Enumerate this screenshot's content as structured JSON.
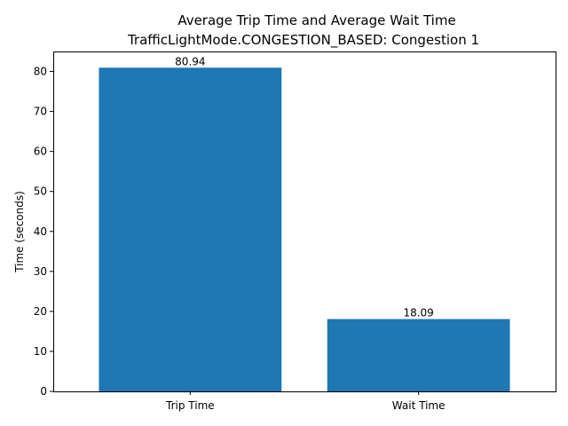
{
  "chart_data": {
    "type": "bar",
    "title": "Average Trip Time and Average Wait Time",
    "subtitle": "TrafficLightMode.CONGESTION_BASED: Congestion 1",
    "xlabel": "",
    "ylabel": "Time (seconds)",
    "categories": [
      "Trip Time",
      "Wait Time"
    ],
    "values": [
      80.94,
      18.09
    ],
    "data_labels": [
      "80.94",
      "18.09"
    ],
    "ylim": [
      0,
      85
    ],
    "yticks": [
      0,
      10,
      20,
      30,
      40,
      50,
      60,
      70,
      80
    ],
    "grid": false,
    "bar_color": "#1f77b4"
  }
}
